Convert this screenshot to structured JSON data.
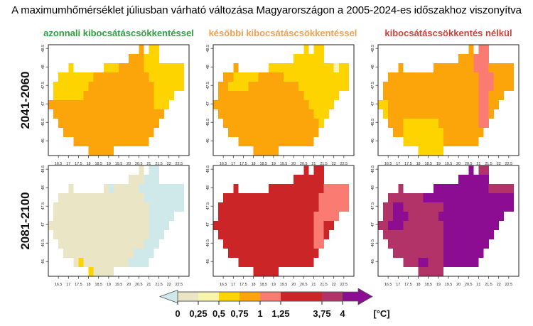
{
  "title": "A maximumhőmérséklet júliusban várható változása Magyarországon a 2005-2024-es időszakhoz viszonyítva",
  "column_headers": [
    {
      "label": "azonnali kibocsátáscsökkentéssel",
      "color": "#2f9e41"
    },
    {
      "label": "későbbi kibocsátáscsökkentéssel",
      "color": "#f0a050"
    },
    {
      "label": "kibocsátáscsökkentés nélkül",
      "color": "#cc4238"
    }
  ],
  "row_headers": [
    {
      "label": "2041-2060"
    },
    {
      "label": "2081-2100"
    }
  ],
  "chart_data": {
    "type": "heatmap",
    "description": "Expected change of July maximum temperature in Hungary relative to 2005-2024 [°C]; rows = time horizons, columns = emission scenarios; gridded choropleth maps of Hungary",
    "x_axis": {
      "ticks": [
        "16.5",
        "17",
        "17.5",
        "18",
        "18.5",
        "19",
        "19.5",
        "20",
        "20.5",
        "21",
        "21.5",
        "22",
        "22.5"
      ],
      "range": [
        16.0,
        23.0
      ]
    },
    "y_axis": {
      "ticks": [
        "46",
        "46.5",
        "47",
        "47.5",
        "48",
        "48.5"
      ],
      "range": [
        45.6,
        48.6
      ]
    },
    "palette": {
      "C": {
        "hex": "#cfe8ea",
        "bin": "< 0"
      },
      "B": {
        "hex": "#eae6c5",
        "bin": "0 – 0,25"
      },
      "L": {
        "hex": "#f8f4ac",
        "bin": "0,25 – 0,5"
      },
      "Y": {
        "hex": "#fdd300",
        "bin": "0,5 – 0,75"
      },
      "O": {
        "hex": "#fca50a",
        "bin": "0,75 – 1"
      },
      "P": {
        "hex": "#f97b72",
        "bin": "1 – 1,25"
      },
      "R": {
        "hex": "#cb2527",
        "bin": "1,25 – 3,75"
      },
      "M": {
        "hex": "#b23368",
        "bin": "3,75 – 4"
      },
      "U": {
        "hex": "#8d0d92",
        "bin": "> 4"
      }
    },
    "panels": [
      {
        "period": "2041-2060",
        "scenario": "azonnali kibocsátáscsökkentéssel",
        "grid": [
          "..................O.YY......",
          "................OOOYYY......",
          "....Y......YYYOOOOOYYYYYYYY.",
          "..YYYYYYYOOOOOOOOOOOYYYYYYY.",
          ".YYYYYYYOOOOOOOOOOOOOYYYYYY.",
          ".YYYYYYOOOOOOOOOOOOOOYYYY...",
          "OOOOOOOOOOOOOOOOOOOOOYYY....",
          ".OOOOOOOOOOOOOOOOOOOOOO.....",
          "..OOOOOOOOOOOOOOOOOOOO......",
          "...OOOOOOOOOOOOOOOOOO.......",
          ".....OOOOOOOOOOOOOOO........",
          "........OOOOO..............."
        ]
      },
      {
        "period": "2041-2060",
        "scenario": "későbbi kibocsátáscsökkentéssel",
        "grid": [
          "..................Y.YY......",
          "................YYYYYY......",
          "....O......YYYYYYYYYYYYYLYY.",
          "..OOYYYYYOOOOOYYYYYYYYYYYYY.",
          ".OOYYYYOOOOOOOOOOYYYYYYYYYY.",
          ".OOOOOOOOOOOOOOOOOYYYYYYY...",
          "OOOOOOOOOOOOOOOOOOOYYYYY....",
          ".OOOOOOOOOOOOOOOOOOOYYY.....",
          "..OOOOOOOOOOOOOOOOOOOY......",
          "...OOOOOOOOOOOOOOOOOO.......",
          ".....OOOOOOOOOOOOOOO........",
          "........OOOOO..............."
        ]
      },
      {
        "period": "2041-2060",
        "scenario": "kibocsátáscsökkentés nélkül",
        "grid": [
          "..................O.PP......",
          "................OOOPPP......",
          "....O......OOOOOOOOPPPOOOOO.",
          "..OOOOOOOOOOOOOOOOOOPPPOOOO.",
          ".OOOOOOOOOOOOOOOOOOOPPPOOOO.",
          ".OOOOOOOOOOOOOOOOOOOPPOOO...",
          "YYOOOOOOOOOOOOOOOOOOPPOO....",
          ".YOOOOOOOOOOOOOOOOOOPPO.....",
          "..OOOYYYYYYYOOOOOOOOPP......",
          "...OOYYYYYYYYOOOOOOOO.......",
          ".....YYYYYYYYOOOOOOO........",
          "........YYYYY..............."
        ]
      },
      {
        "period": "2081-2100",
        "scenario": "azonnali kibocsátáscsökkentéssel",
        "grid": [
          "..................B.CC......",
          "................BBBCCC......",
          "....B......BCBBBBBCCCCCCCCC.",
          "..BBBBBBBBBBBBBBBBBCCCCCCCC.",
          ".BBBBBBBBBBBBBBBBBBBCCCCCCC.",
          ".BBBBBBBBBBBBBBBBBBBCCCCC...",
          "BBBBBBBBBBBBBBBBBBBBCCCC....",
          ".BBBBBBBBBBBBBBBBBBBCCC.....",
          "..BBBBBBBBBBBBBBBBBCCC......",
          "...BBBBBBBBBBBBBBCCCC.......",
          ".....BYBBBBBBBBBCCCC........",
          "........YBBBB..............."
        ]
      },
      {
        "period": "2081-2100",
        "scenario": "későbbi kibocsátáscsökkentéssel",
        "grid": [
          "..................R.RR......",
          "................RRRRRR......",
          "....R......RRRRRRRRRRRPPPPP.",
          "..RRRRRRRRRRRRRRRRRRRPPPPPP.",
          ".RRRRRRRRRRRRRRRRRRRRPPPPPP.",
          ".RRRRRRRRRRRRRRRRRRRPPPPP...",
          "RRRRRRRRRRRRRRRRRRRRPPRR....",
          ".RRRRRRRRRRRRRRRRRRRPPR.....",
          "..RRRRRRRRRRRRRRRRRRPP......",
          "...RRRRRRRRRRRRRRRRRR.......",
          ".....RRRRRRRRRRRRRRR........",
          "........RRRRR..............."
        ]
      },
      {
        "period": "2081-2100",
        "scenario": "kibocsátáscsökkentés nélkül",
        "grid": [
          "..................U.MM......",
          "................UUUUUU......",
          "....M......UUUUUUUUUUUMMMMM.",
          "..MMMMMMMUUUUUUUUUUUUUUUUUU.",
          ".MMUUMMMMMMMMUUUUUUUUUUUUUU.",
          ".MMUUUMMMMMMUUUUUUUUUUUUU...",
          "MMUUUMMMMMMMMUUUUUUUUUUU....",
          ".MMMMMMMMMMMMUUUUUUUUUU.....",
          "..MMMMMMMMMMMUUUUUUUUU......",
          "...MMMMMMMMMMUUUUUUUU.......",
          ".....MMMUUMMMUUUUUUU........",
          "........MMMMM..............."
        ]
      }
    ],
    "colorbar": {
      "labels": [
        "0",
        "0,25",
        "0,5",
        "0,75",
        "1",
        "1,25",
        "3,75",
        "4"
      ],
      "unit": "[°C]",
      "segment_keys": [
        "B",
        "L",
        "Y",
        "O",
        "P",
        "R",
        "M"
      ],
      "segment_widths": [
        1,
        1,
        1,
        1,
        1,
        2,
        1
      ],
      "left_arrow_key": "C",
      "right_arrow_key": "U"
    }
  }
}
